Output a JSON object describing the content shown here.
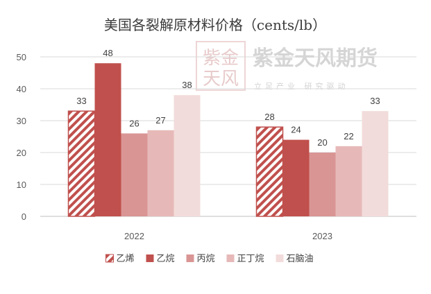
{
  "chart_data": {
    "type": "bar",
    "title": "美国各裂解原材料价格（cents/lb）",
    "categories": [
      "2022",
      "2023"
    ],
    "ylim": [
      0,
      50
    ],
    "yticks": [
      0,
      10,
      20,
      30,
      40,
      50
    ],
    "grid": true,
    "legend": "bottom",
    "series": [
      {
        "name": "乙烯",
        "values": [
          33,
          28
        ],
        "color": "#c0504d",
        "pattern": "hatch"
      },
      {
        "name": "乙烷",
        "values": [
          48,
          24
        ],
        "color": "#c0504d"
      },
      {
        "name": "丙烷",
        "values": [
          26,
          20
        ],
        "color": "#d99594"
      },
      {
        "name": "正丁烷",
        "values": [
          27,
          22
        ],
        "color": "#e6b9b8"
      },
      {
        "name": "石脑油",
        "values": [
          38,
          33
        ],
        "color": "#f2dcdb"
      }
    ]
  },
  "watermark": {
    "brand": "紫金天风期货",
    "slogan": "立足产业 研究驱动",
    "seal": "紫金天风"
  }
}
